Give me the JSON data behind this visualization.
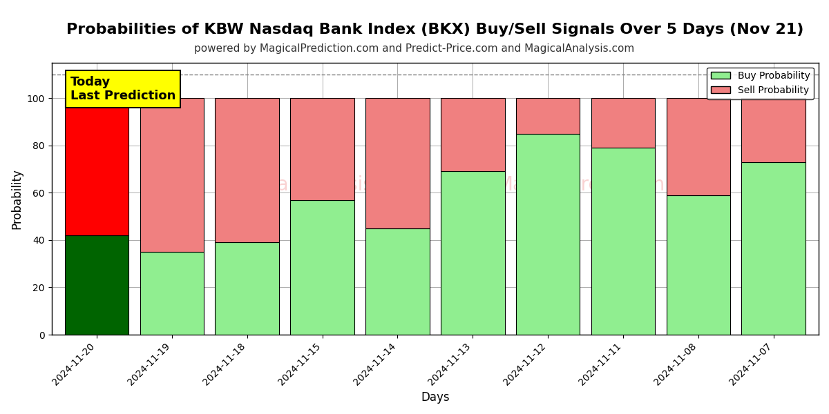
{
  "title": "Probabilities of KBW Nasdaq Bank Index (BKX) Buy/Sell Signals Over 5 Days (Nov 21)",
  "subtitle": "powered by MagicalPrediction.com and Predict-Price.com and MagicalAnalysis.com",
  "xlabel": "Days",
  "ylabel": "Probability",
  "categories": [
    "2024-11-20",
    "2024-11-19",
    "2024-11-18",
    "2024-11-15",
    "2024-11-14",
    "2024-11-13",
    "2024-11-12",
    "2024-11-11",
    "2024-11-08",
    "2024-11-07"
  ],
  "buy_values": [
    42,
    35,
    39,
    57,
    45,
    69,
    85,
    79,
    59,
    73
  ],
  "sell_values": [
    58,
    65,
    61,
    43,
    55,
    31,
    15,
    21,
    41,
    27
  ],
  "buy_colors": [
    "#006400",
    "#90EE90",
    "#90EE90",
    "#90EE90",
    "#90EE90",
    "#90EE90",
    "#90EE90",
    "#90EE90",
    "#90EE90",
    "#90EE90"
  ],
  "sell_colors": [
    "#FF0000",
    "#F08080",
    "#F08080",
    "#F08080",
    "#F08080",
    "#F08080",
    "#F08080",
    "#F08080",
    "#F08080",
    "#F08080"
  ],
  "bar_width": 0.85,
  "ylim": [
    0,
    115
  ],
  "yticks": [
    0,
    20,
    40,
    60,
    80,
    100
  ],
  "dashed_line_y": 110,
  "today_label": "Today\nLast Prediction",
  "legend_buy_label": "Buy Probability",
  "legend_sell_label": "Sell Probability",
  "title_fontsize": 16,
  "subtitle_fontsize": 11,
  "background_color": "#ffffff",
  "grid_color": "#aaaaaa"
}
